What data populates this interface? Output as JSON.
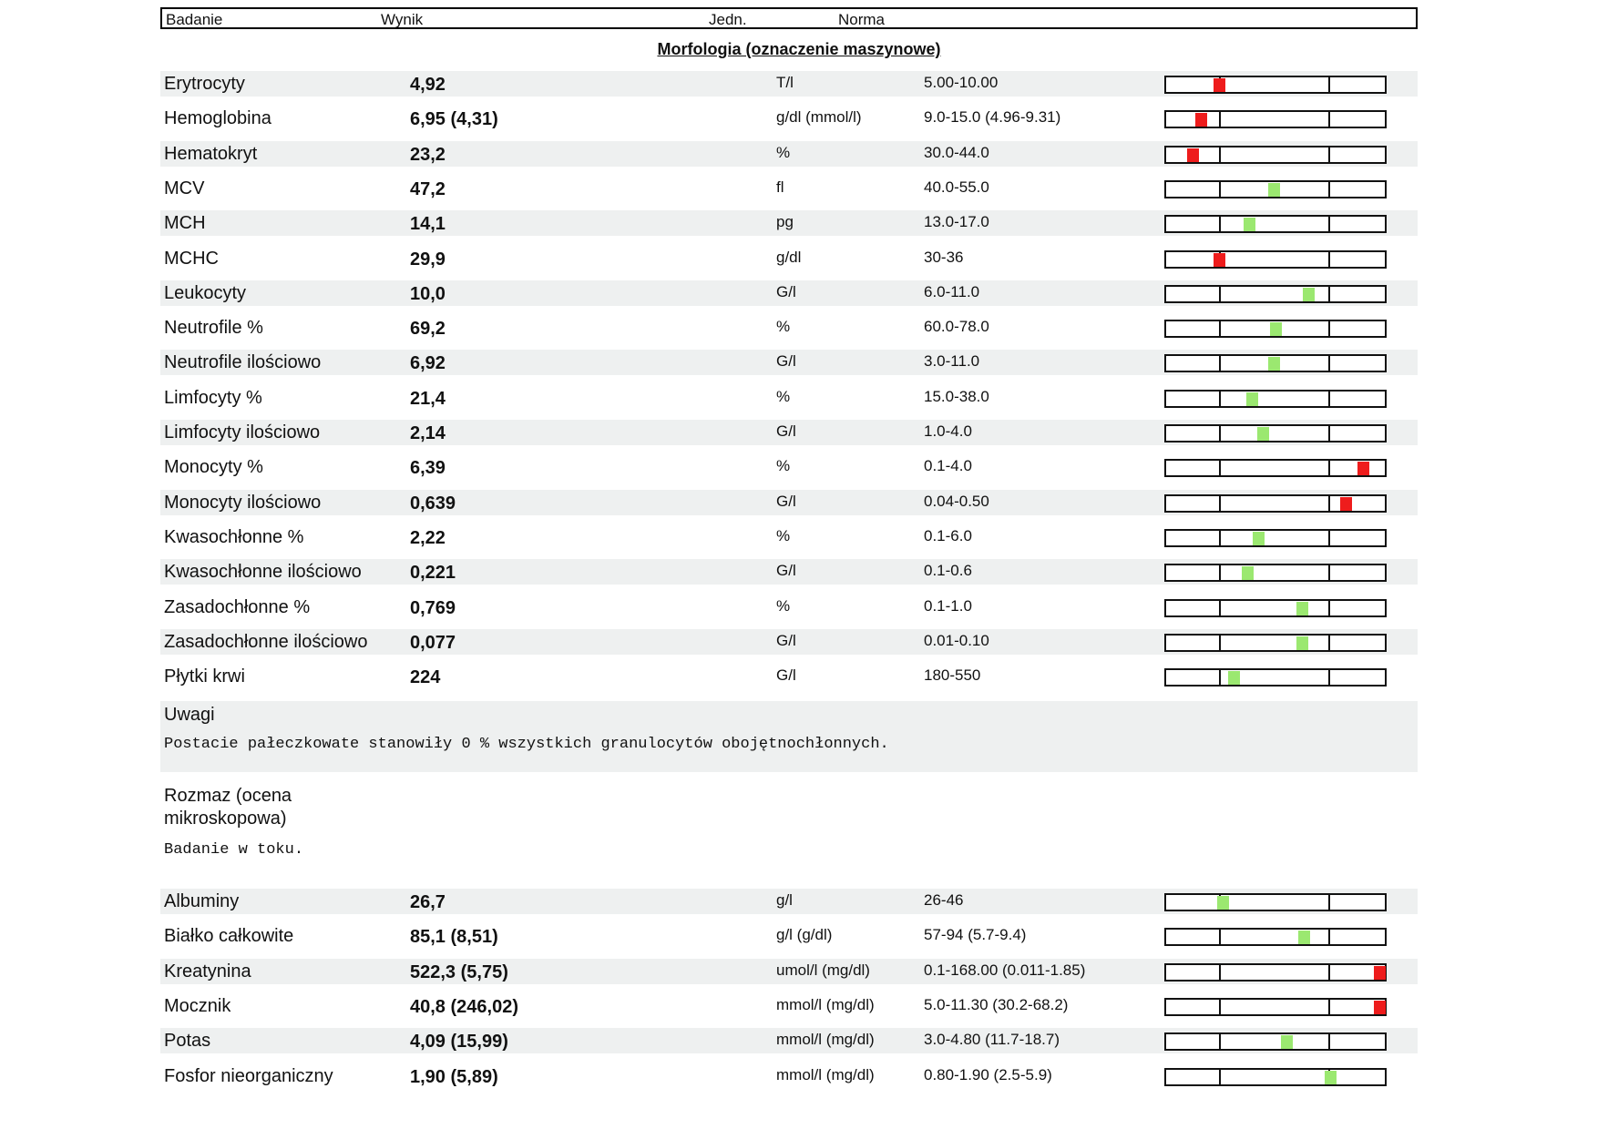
{
  "header": {
    "col_test": "Badanie",
    "col_result": "Wynik",
    "col_unit": "Jedn.",
    "col_norm": "Norma"
  },
  "section1": {
    "title": "Morfologia (oznaczenie maszynowe)",
    "rows": [
      {
        "name": "Erytrocyty",
        "value": "4,92",
        "unit": "T/l",
        "norm": "5.00-10.00",
        "status": "abnormal",
        "marker_fraction": 0.24
      },
      {
        "name": "Hemoglobina",
        "value": "6,95 (4,31)",
        "unit": "g/dl (mmol/l)",
        "norm": "9.0-15.0 (4.96-9.31)",
        "status": "abnormal",
        "marker_fraction": 0.16
      },
      {
        "name": "Hematokryt",
        "value": "23,2",
        "unit": "%",
        "norm": "30.0-44.0",
        "status": "abnormal",
        "marker_fraction": 0.12
      },
      {
        "name": "MCV",
        "value": "47,2",
        "unit": "fl",
        "norm": "40.0-55.0",
        "status": "normal",
        "marker_fraction": 0.49
      },
      {
        "name": "MCH",
        "value": "14,1",
        "unit": "pg",
        "norm": "13.0-17.0",
        "status": "normal",
        "marker_fraction": 0.38
      },
      {
        "name": "MCHC",
        "value": "29,9",
        "unit": "g/dl",
        "norm": "30-36",
        "status": "abnormal",
        "marker_fraction": 0.24
      },
      {
        "name": "Leukocyty",
        "value": "10,0",
        "unit": "G/l",
        "norm": "6.0-11.0",
        "status": "normal",
        "marker_fraction": 0.65
      },
      {
        "name": "Neutrofile %",
        "value": "69,2",
        "unit": "%",
        "norm": "60.0-78.0",
        "status": "normal",
        "marker_fraction": 0.5
      },
      {
        "name": "Neutrofile ilościowo",
        "value": "6,92",
        "unit": "G/l",
        "norm": "3.0-11.0",
        "status": "normal",
        "marker_fraction": 0.49
      },
      {
        "name": "Limfocyty %",
        "value": "21,4",
        "unit": "%",
        "norm": "15.0-38.0",
        "status": "normal",
        "marker_fraction": 0.39
      },
      {
        "name": "Limfocyty ilościowo",
        "value": "2,14",
        "unit": "G/l",
        "norm": "1.0-4.0",
        "status": "normal",
        "marker_fraction": 0.44
      },
      {
        "name": "Monocyty %",
        "value": "6,39",
        "unit": "%",
        "norm": "0.1-4.0",
        "status": "abnormal",
        "marker_fraction": 0.9
      },
      {
        "name": "Monocyty ilościowo",
        "value": "0,639",
        "unit": "G/l",
        "norm": "0.04-0.50",
        "status": "abnormal",
        "marker_fraction": 0.82
      },
      {
        "name": "Kwasochłonne %",
        "value": "2,22",
        "unit": "%",
        "norm": "0.1-6.0",
        "status": "normal",
        "marker_fraction": 0.42
      },
      {
        "name": "Kwasochłonne ilościowo",
        "value": "0,221",
        "unit": "G/l",
        "norm": "0.1-0.6",
        "status": "normal",
        "marker_fraction": 0.37
      },
      {
        "name": "Zasadochłonne %",
        "value": "0,769",
        "unit": "%",
        "norm": "0.1-1.0",
        "status": "normal",
        "marker_fraction": 0.62
      },
      {
        "name": "Zasadochłonne ilościowo",
        "value": "0,077",
        "unit": "G/l",
        "norm": "0.01-0.10",
        "status": "normal",
        "marker_fraction": 0.62
      },
      {
        "name": "Płytki krwi",
        "value": "224",
        "unit": "G/l",
        "norm": "180-550",
        "status": "normal",
        "marker_fraction": 0.31
      }
    ]
  },
  "remarks": {
    "label": "Uwagi",
    "text": "Postacie pałeczkowate stanowiły 0 % wszystkich granulocytów obojętnochłonnych."
  },
  "smear": {
    "label_line1": "Rozmaz (ocena",
    "label_line2": "mikroskopowa)",
    "note": "Badanie w toku."
  },
  "section2": {
    "rows": [
      {
        "name": "Albuminy",
        "value": "26,7",
        "unit": "g/l",
        "norm": "26-46",
        "status": "normal",
        "marker_fraction": 0.26
      },
      {
        "name": "Białko całkowite",
        "value": "85,1 (8,51)",
        "unit": "g/l (g/dl)",
        "norm": "57-94 (5.7-9.4)",
        "status": "normal",
        "marker_fraction": 0.63
      },
      {
        "name": "Kreatynina",
        "value": "522,3 (5,75)",
        "unit": "umol/l (mg/dl)",
        "norm": "0.1-168.00 (0.011-1.85)",
        "status": "abnormal",
        "marker_fraction": 1.0
      },
      {
        "name": "Mocznik",
        "value": "40,8 (246,02)",
        "unit": "mmol/l (mg/dl)",
        "norm": "5.0-11.30 (30.2-68.2)",
        "status": "abnormal",
        "marker_fraction": 1.0
      },
      {
        "name": "Potas",
        "value": "4,09 (15,99)",
        "unit": "mmol/l (mg/dl)",
        "norm": "3.0-4.80 (11.7-18.7)",
        "status": "normal",
        "marker_fraction": 0.55
      },
      {
        "name": "Fosfor nieorganiczny",
        "value": "1,90 (5,89)",
        "unit": "mmol/l (mg/dl)",
        "norm": "0.80-1.90 (2.5-5.9)",
        "status": "normal",
        "marker_fraction": 0.75
      }
    ]
  },
  "colors": {
    "abnormal": "#ee1c1c",
    "normal": "#9be870",
    "shade": "#eef0f0"
  }
}
